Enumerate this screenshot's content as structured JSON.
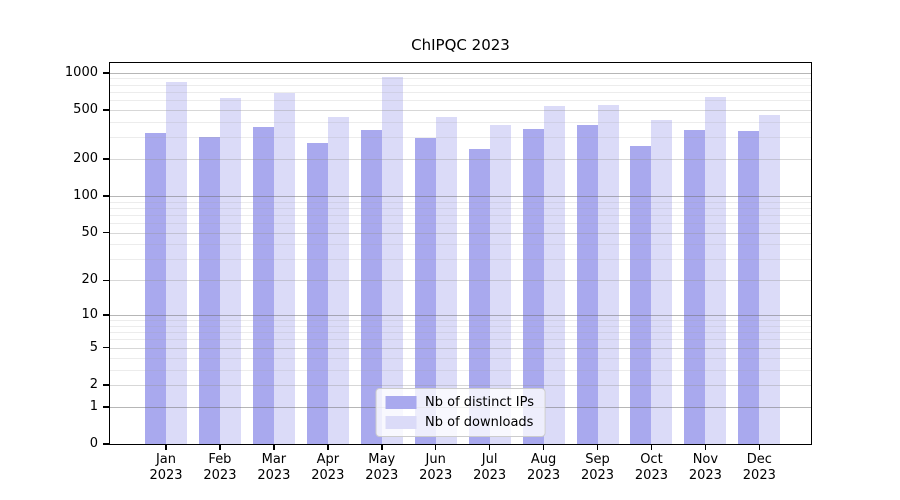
{
  "title": "ChIPQC 2023",
  "colors": {
    "distinct_ips": "#a9a9ee",
    "downloads": "#dbdbf8",
    "axis": "#000000",
    "legend_border": "#cccccc"
  },
  "chart_data": {
    "type": "bar",
    "title": "ChIPQC 2023",
    "categories": [
      "Jan 2023",
      "Feb 2023",
      "Mar 2023",
      "Apr 2023",
      "May 2023",
      "Jun 2023",
      "Jul 2023",
      "Aug 2023",
      "Sep 2023",
      "Oct 2023",
      "Nov 2023",
      "Dec 2023"
    ],
    "series": [
      {
        "name": "Nb of distinct IPs",
        "color": "#a9a9ee",
        "values": [
          326,
          303,
          365,
          271,
          344,
          298,
          243,
          348,
          375,
          256,
          346,
          339
        ]
      },
      {
        "name": "Nb of downloads",
        "color": "#dbdbf8",
        "values": [
          845,
          630,
          689,
          440,
          917,
          440,
          377,
          536,
          550,
          413,
          632,
          457
        ]
      }
    ],
    "y_ticks": [
      0,
      1,
      2,
      5,
      10,
      20,
      50,
      100,
      200,
      500,
      1000
    ],
    "y_minor_ticks": [
      3,
      4,
      6,
      7,
      8,
      9,
      30,
      40,
      60,
      70,
      80,
      90,
      300,
      400,
      600,
      700,
      800,
      900
    ],
    "y_scale": "log1p",
    "ylim": [
      0,
      1200
    ],
    "xlabel": "",
    "ylabel": "",
    "grid": true,
    "grid_over_bars": true,
    "legend_position": "lower center"
  }
}
